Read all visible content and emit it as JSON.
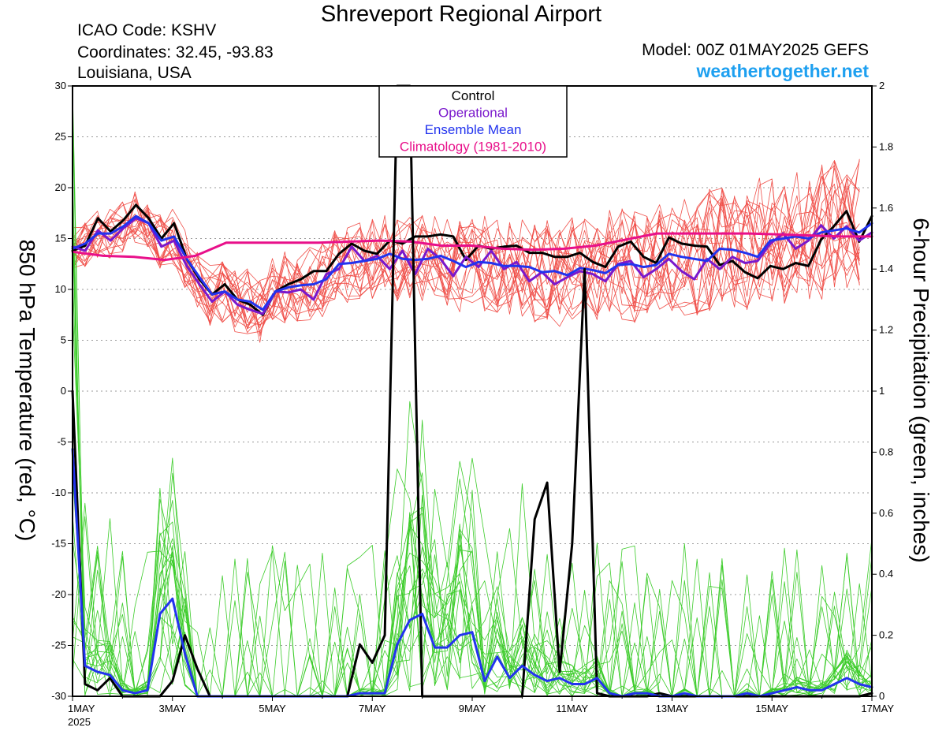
{
  "header": {
    "title": "Shreveport Regional Airport",
    "icao": "ICAO Code: KSHV",
    "coordinates": "Coordinates: 32.45, -93.83",
    "region": "Louisiana, USA",
    "model": "Model: 00Z 01MAY2025 GEFS",
    "site": "weathertogether.net"
  },
  "colors": {
    "members_temp": "#f0504a",
    "members_precip": "#3ccc2a",
    "control": "#000000",
    "operational": "#7a18cc",
    "ensemble_mean": "#2233ee",
    "climatology": "#e8108a",
    "site": "#1ea0f0"
  },
  "chart_data": {
    "type": "line",
    "title": "Shreveport Regional Airport",
    "ylabel": "850 hPa Temperature (red, °C)",
    "y2label": "6-hour Precipitation (green, inches)",
    "ylim": [
      -30,
      30
    ],
    "y2lim": [
      0,
      2
    ],
    "x_unit": "days since 1MAY 2025 00Z",
    "xlim": [
      0,
      16
    ],
    "xtick_values": [
      0,
      2,
      4,
      6,
      8,
      10,
      12,
      14,
      16
    ],
    "xtick_labels": [
      "1MAY",
      "3MAY",
      "5MAY",
      "7MAY",
      "9MAY",
      "11MAY",
      "13MAY",
      "15MAY",
      "17MAY"
    ],
    "xtick_year": "2025",
    "yticks": [
      "30",
      "25",
      "20",
      "15",
      "10",
      "5",
      "0",
      "-5",
      "-10",
      "-15",
      "-20",
      "-25",
      "-30"
    ],
    "y2ticks": [
      "2",
      "1.8",
      "1.6",
      "1.4",
      "1.2",
      "1",
      "0.8",
      "0.6",
      "0.4",
      "0.2",
      "0"
    ],
    "grid": true,
    "legend_position": "top-center",
    "legend": [
      "Control",
      "Operational",
      "Ensemble Mean",
      "Climatology (1981-2010)"
    ],
    "series": [
      {
        "name": "Control",
        "axis": "temp",
        "values": [
          13.8,
          14.3,
          17.0,
          15.7,
          16.8,
          18.3,
          17.0,
          15.0,
          16.5,
          13.0,
          11.0,
          9.5,
          10.5,
          9.0,
          8.5,
          7.5,
          9.8,
          10.5,
          11.0,
          11.8,
          11.8,
          13.5,
          14.5,
          13.8,
          13.5,
          14.8,
          14.5,
          15.2,
          15.2,
          15.4,
          15.2,
          12.9,
          14.3,
          14.0,
          14.2,
          14.3,
          13.6,
          13.6,
          13.2,
          13.2,
          13.6,
          12.7,
          12.2,
          14.2,
          14.7,
          13.2,
          12.6,
          15.1,
          14.5,
          14.3,
          14.2,
          12.4,
          12.8,
          11.7,
          11.1,
          12.3,
          12.0,
          12.6,
          12.3,
          14.9,
          16.2,
          17.7,
          14.7,
          17.2
        ]
      },
      {
        "name": "Operational",
        "axis": "temp",
        "values": [
          14.2,
          13.8,
          15.8,
          14.8,
          16.0,
          17.0,
          16.5,
          14.2,
          14.8,
          12.3,
          10.5,
          8.8,
          9.8,
          8.5,
          8.0,
          7.6,
          9.8,
          9.7,
          10.0,
          9.0,
          11.5,
          12.0,
          14.2,
          12.8,
          13.3,
          12.0,
          13.8,
          11.5,
          14.0,
          13.0,
          11.3,
          13.2,
          12.2,
          13.8,
          12.0,
          12.7,
          10.8,
          11.7,
          10.5,
          11.2,
          11.8,
          11.5,
          10.8,
          12.5,
          12.8,
          11.2,
          12.0,
          13.0,
          11.8,
          11.0,
          13.0,
          12.0,
          13.2,
          12.6,
          12.8,
          14.5,
          15.5,
          14.0,
          14.8,
          16.3,
          15.0,
          16.2,
          14.8,
          15.6
        ]
      },
      {
        "name": "Ensemble Mean",
        "axis": "temp",
        "values": [
          14.0,
          14.5,
          15.5,
          15.5,
          16.2,
          17.2,
          16.5,
          14.8,
          15.2,
          13.0,
          11.2,
          9.5,
          9.8,
          9.0,
          8.8,
          8.0,
          9.8,
          10.2,
          10.4,
          10.5,
          11.0,
          12.5,
          12.6,
          12.8,
          13.0,
          13.5,
          13.0,
          12.9,
          13.0,
          13.3,
          12.8,
          12.2,
          12.7,
          12.6,
          12.3,
          12.3,
          12.2,
          11.7,
          11.8,
          11.4,
          12.1,
          11.9,
          11.6,
          12.4,
          12.5,
          12.2,
          12.4,
          13.5,
          13.2,
          13.0,
          12.8,
          14.0,
          13.9,
          13.6,
          13.2,
          14.8,
          15.0,
          15.2,
          15.0,
          15.6,
          15.8,
          16.0,
          15.6,
          16.5
        ]
      },
      {
        "name": "Climatology (1981-2010)",
        "axis": "temp",
        "values": [
          13.7,
          13.3,
          13.2,
          12.9,
          13.3,
          14.6,
          14.6,
          14.6,
          14.6,
          14.7,
          14.8,
          14.7,
          14.3,
          14.3,
          14.0,
          13.9,
          14.0,
          14.3,
          14.9,
          15.5,
          15.5,
          15.5,
          15.5,
          15.4,
          15.3,
          15.2,
          15.2
        ]
      },
      {
        "name": "Control",
        "axis": "precip",
        "values": [
          1.0,
          0.04,
          0.02,
          0.06,
          0,
          0,
          0,
          0.0,
          0.05,
          0.2,
          0.09,
          0,
          0,
          0,
          0,
          0,
          0,
          0,
          0,
          0,
          0,
          0,
          0,
          0.17,
          0.11,
          0.2,
          2.0,
          2.0,
          0,
          0,
          0,
          0,
          0,
          0,
          0,
          0,
          0,
          0.58,
          0.7,
          0.08,
          0.5,
          1.4,
          0.01,
          0,
          0,
          0,
          0,
          0.01,
          0,
          0,
          0,
          0,
          0,
          0,
          0,
          0,
          0,
          0,
          0,
          0,
          0,
          0,
          0,
          0,
          0.01
        ]
      },
      {
        "name": "Ensemble Mean",
        "axis": "precip",
        "values": [
          0.81,
          0.1,
          0.08,
          0.07,
          0.02,
          0.01,
          0.02,
          0.27,
          0.32,
          0.14,
          0.0,
          0,
          0,
          0,
          0,
          0,
          0,
          0,
          0,
          0,
          0,
          0,
          0,
          0.01,
          0.01,
          0.01,
          0.17,
          0.25,
          0.27,
          0.16,
          0.16,
          0.2,
          0.21,
          0.05,
          0.13,
          0.06,
          0.1,
          0.07,
          0.05,
          0.06,
          0.04,
          0.04,
          0.06,
          0.01,
          0.0,
          0.01,
          0.01,
          0.0,
          0.0,
          0.01,
          0.0,
          0.0,
          0.0,
          0.0,
          0.01,
          0.0,
          0.01,
          0.02,
          0.03,
          0.02,
          0.02,
          0.04,
          0.06,
          0.04,
          0.03
        ]
      }
    ]
  }
}
